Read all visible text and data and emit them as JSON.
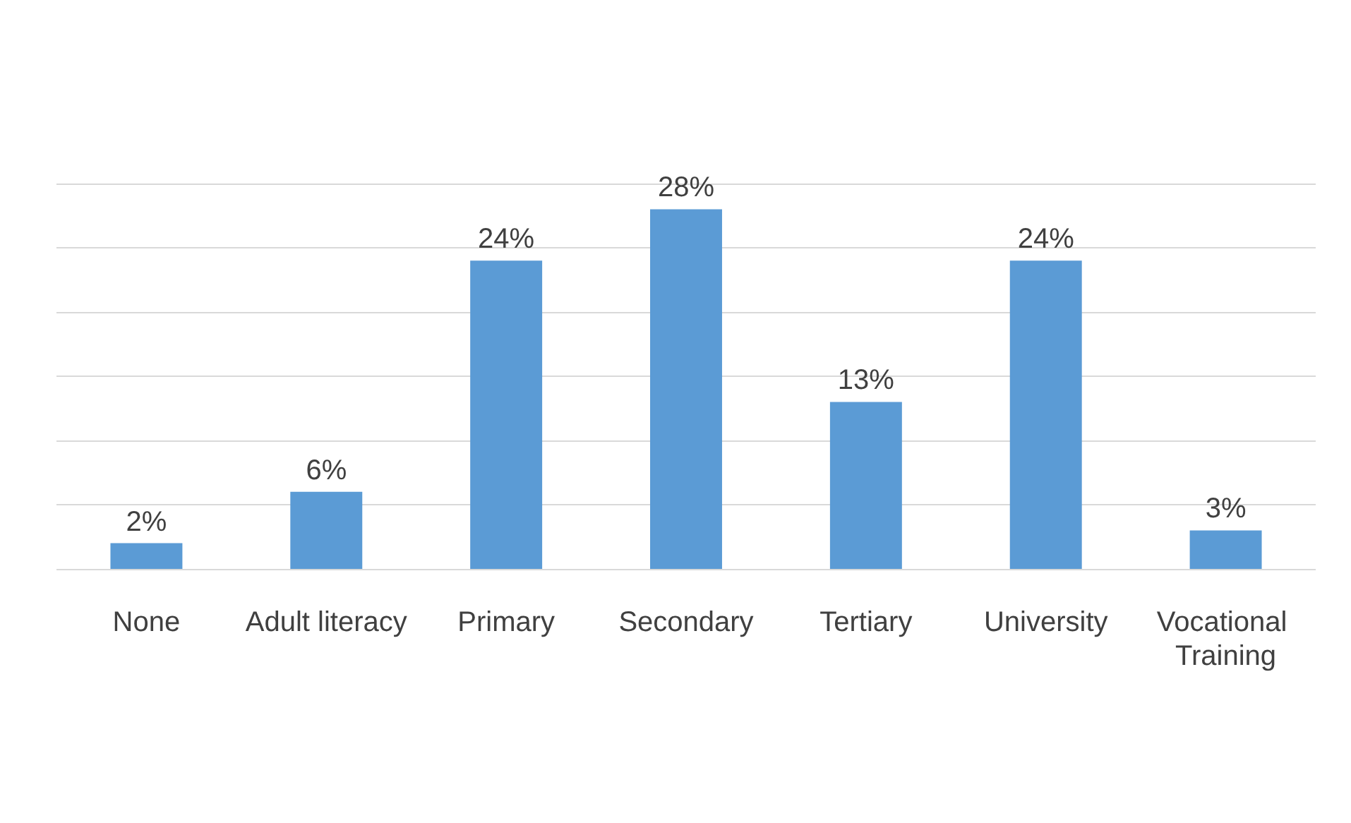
{
  "chart_data": {
    "type": "bar",
    "categories": [
      "None",
      "Adult literacy",
      "Primary",
      "Secondary",
      "Tertiary",
      "University",
      "Vocational Training"
    ],
    "values": [
      2,
      6,
      24,
      28,
      13,
      24,
      3
    ],
    "value_labels": [
      "2%",
      "6%",
      "24%",
      "28%",
      "13%",
      "24%",
      "3%"
    ],
    "color": "#5b9bd5",
    "grid": "y"
  }
}
